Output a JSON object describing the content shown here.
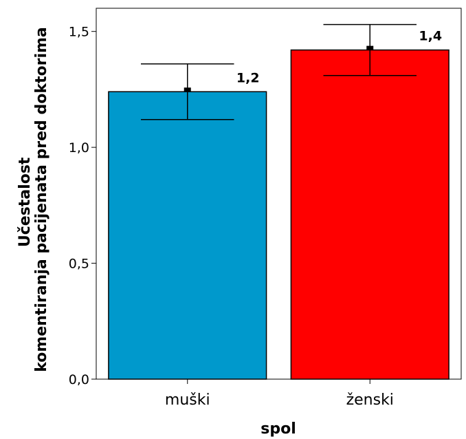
{
  "chart_data": {
    "type": "bar",
    "title": "",
    "xlabel": "spol",
    "ylabel_lines": [
      "Učestalost",
      "komentiranja pacijenata pred doktorima"
    ],
    "categories": [
      "muški",
      "ženski"
    ],
    "values": [
      1.24,
      1.42
    ],
    "data_labels": [
      "1,2",
      "1,4"
    ],
    "error_bars": [
      {
        "low": 1.12,
        "high": 1.36
      },
      {
        "low": 1.31,
        "high": 1.53
      }
    ],
    "bar_colors": [
      "#0099cc",
      "#ff0000"
    ],
    "ylim": [
      0,
      1.6
    ],
    "y_ticks": [
      {
        "value": 0.0,
        "label": "0,0"
      },
      {
        "value": 0.5,
        "label": "0,5"
      },
      {
        "value": 1.0,
        "label": "1,0"
      },
      {
        "value": 1.5,
        "label": "1,5"
      }
    ],
    "grid": false,
    "legend": "none"
  }
}
